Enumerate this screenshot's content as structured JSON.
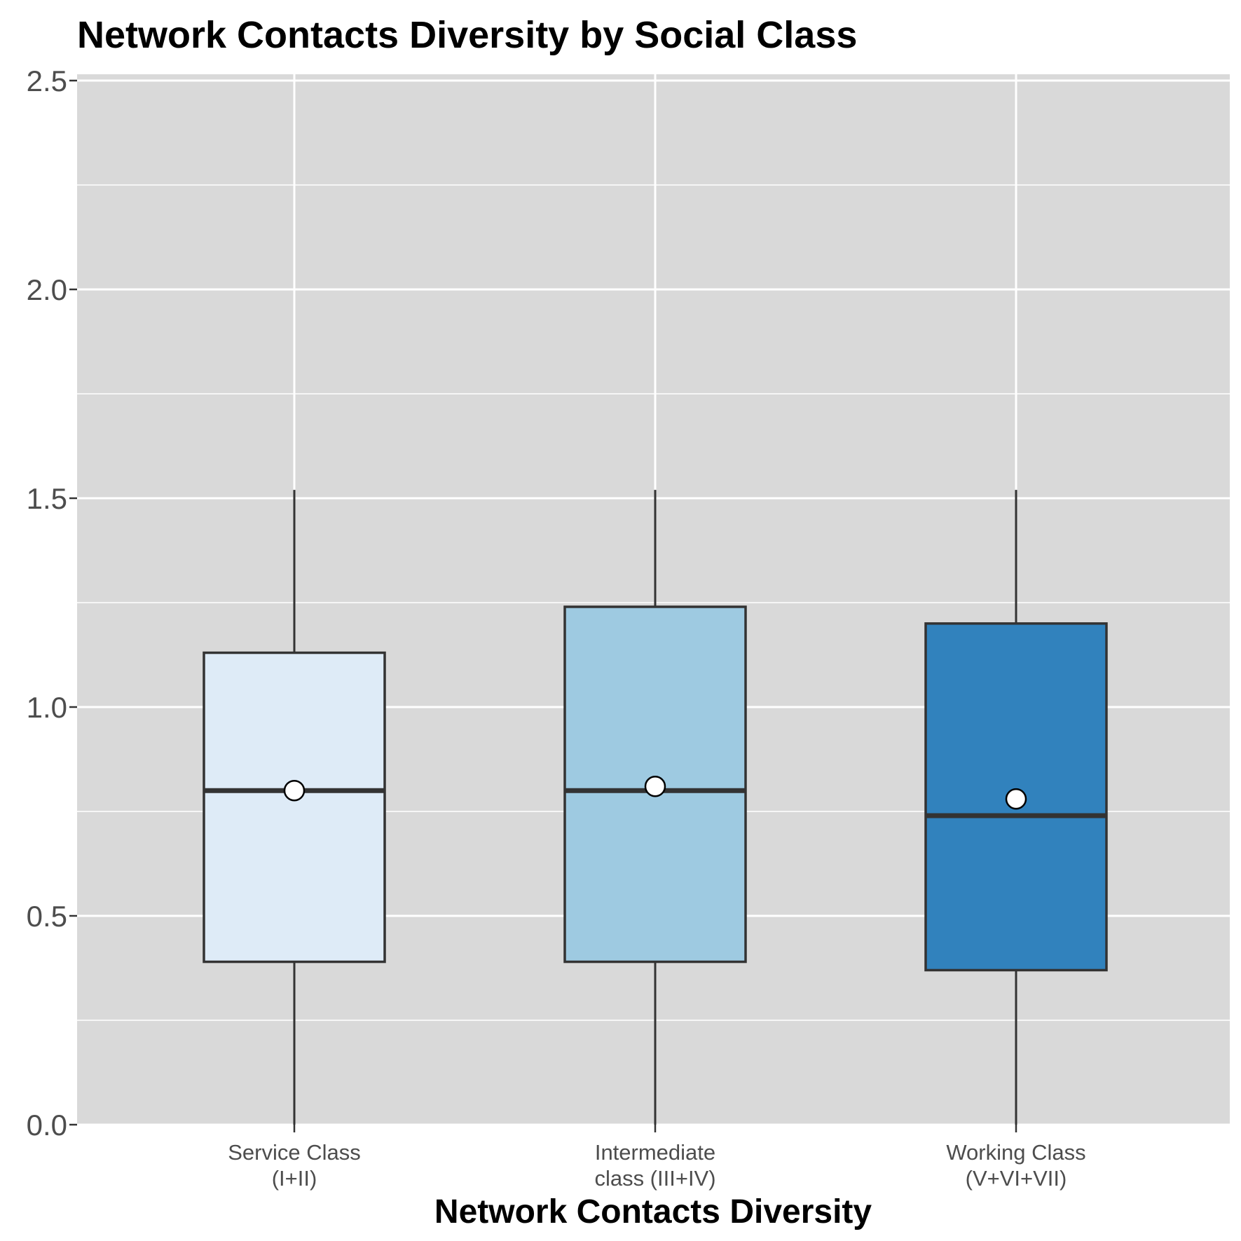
{
  "chart_data": {
    "type": "boxplot",
    "title": "Network Contacts Diversity by Social Class",
    "xlabel": "Network Contacts Diversity",
    "ylabel": "",
    "ylim": [
      0,
      2.5
    ],
    "yticks": [
      "0.0",
      "0.5",
      "1.0",
      "1.5",
      "2.0",
      "2.5"
    ],
    "yticks_values": [
      0,
      0.5,
      1.0,
      1.5,
      2.0,
      2.5
    ],
    "grid": true,
    "legend": "none",
    "panel_background": "#d9d9d9",
    "categories": [
      {
        "label_lines": [
          "Service Class",
          "(I+II)"
        ],
        "whisker_low": 0.0,
        "q1": 0.39,
        "median": 0.8,
        "q3": 1.13,
        "whisker_high": 1.52,
        "mean": 0.8,
        "color": "#deebf7"
      },
      {
        "label_lines": [
          "Intermediate",
          "class (III+IV)"
        ],
        "whisker_low": 0.0,
        "q1": 0.39,
        "median": 0.8,
        "q3": 1.24,
        "whisker_high": 1.52,
        "mean": 0.81,
        "color": "#9ecae1"
      },
      {
        "label_lines": [
          "Working Class",
          "(V+VI+VII)"
        ],
        "whisker_low": 0.0,
        "q1": 0.37,
        "median": 0.74,
        "q3": 1.2,
        "whisker_high": 1.52,
        "mean": 0.78,
        "color": "#3182bd"
      }
    ]
  }
}
